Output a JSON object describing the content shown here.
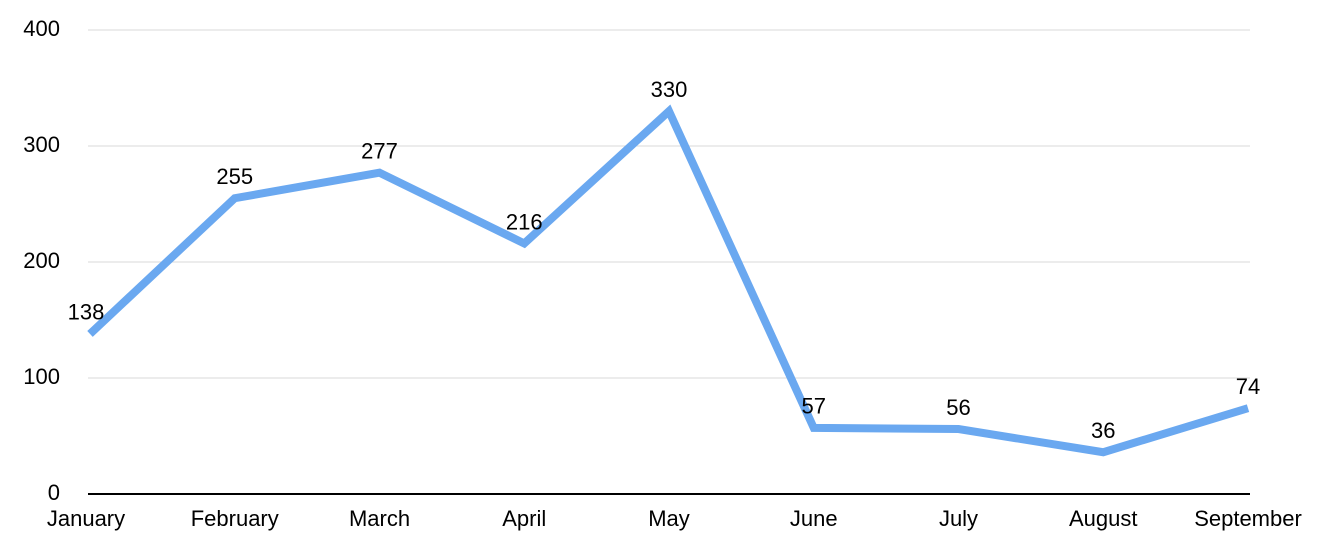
{
  "chart_data": {
    "type": "line",
    "categories": [
      "January",
      "February",
      "March",
      "April",
      "May",
      "June",
      "July",
      "August",
      "September"
    ],
    "values": [
      138,
      255,
      277,
      216,
      330,
      57,
      56,
      36,
      74
    ],
    "color": "#6aa8f0",
    "ylim": [
      0,
      400
    ],
    "yticks": [
      0,
      100,
      200,
      300,
      400
    ],
    "grid": true
  }
}
